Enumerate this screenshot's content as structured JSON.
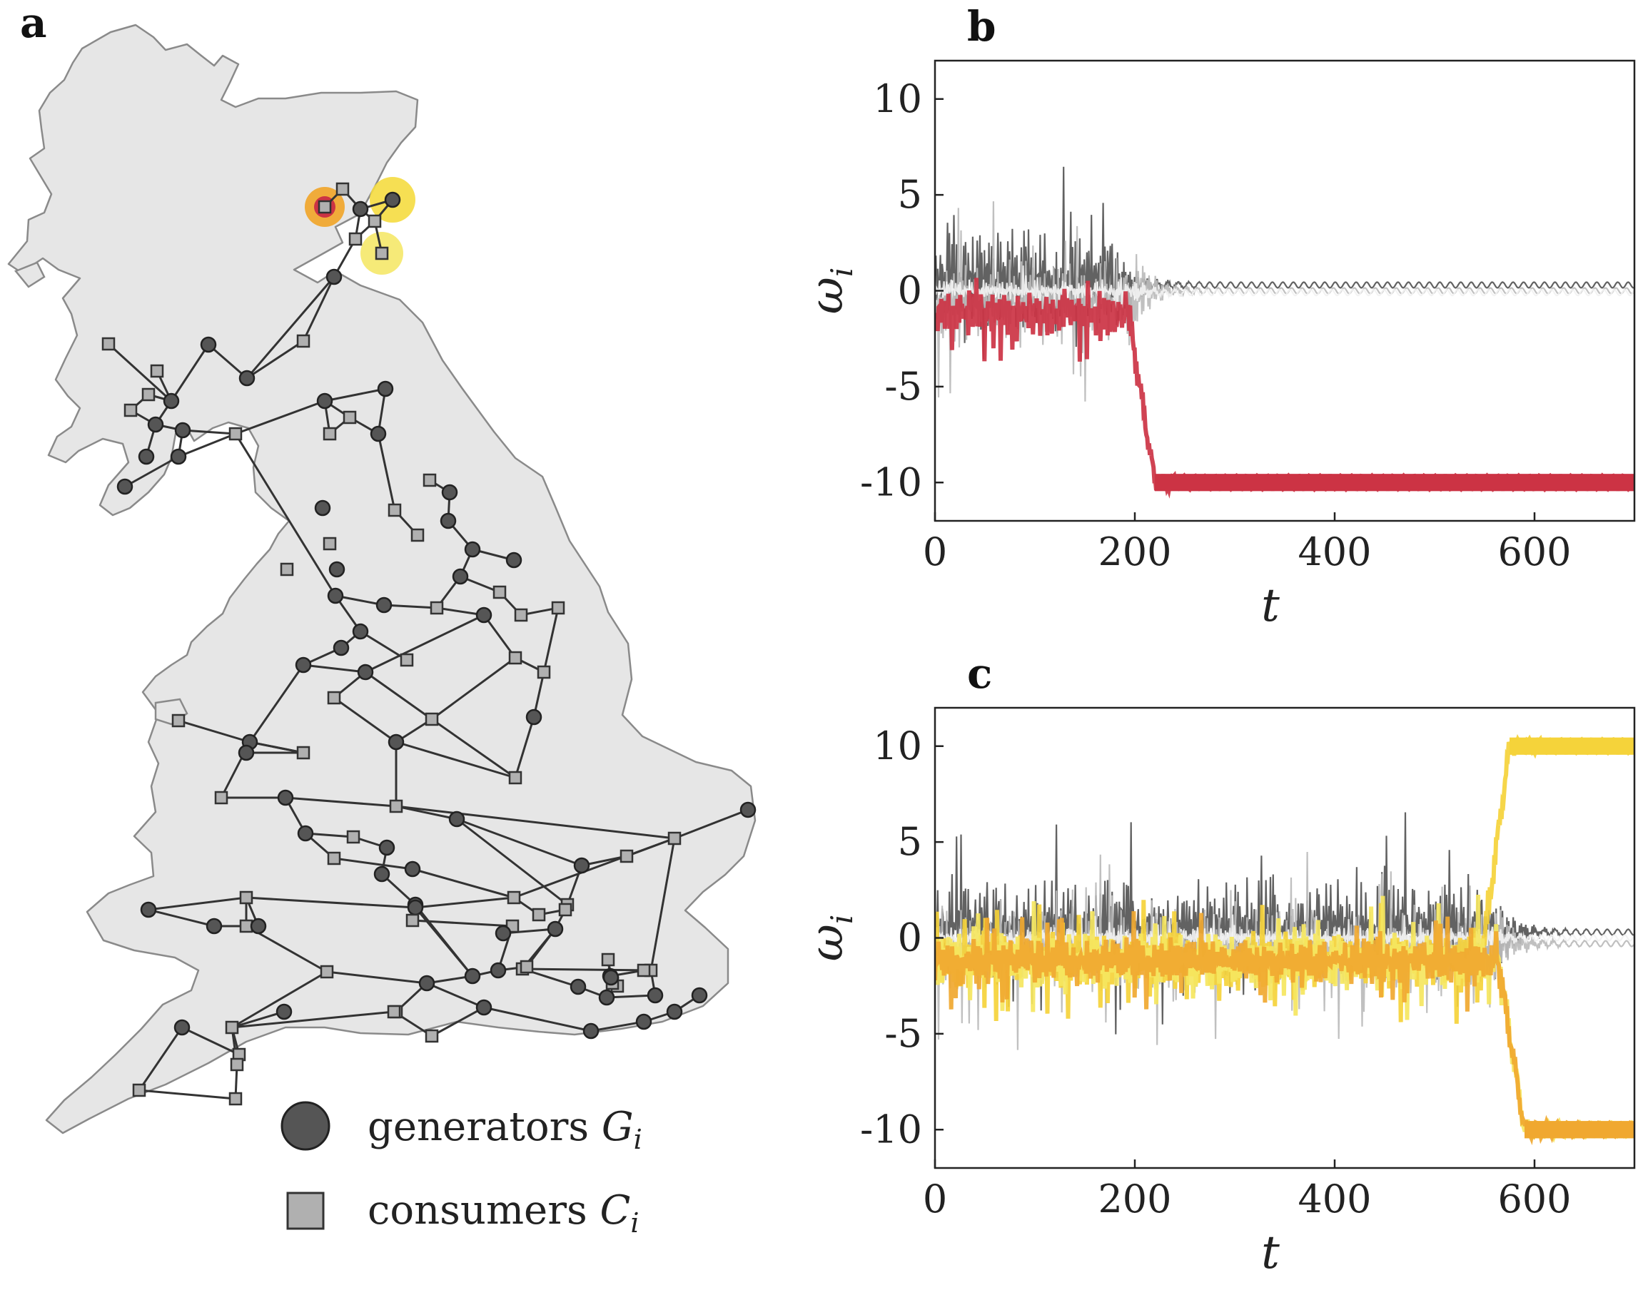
{
  "panels": {
    "a": {
      "label": "a",
      "legend": {
        "generators": {
          "text": "generators ",
          "symbol": "G",
          "sub": "i"
        },
        "consumers": {
          "text": "consumers ",
          "symbol": "C",
          "sub": "i"
        }
      }
    }
  },
  "chart_data": [
    {
      "id": "b",
      "label": "b",
      "type": "line",
      "xlabel": "t",
      "ylabel": "ω",
      "ylabel_sub": "i",
      "xlim": [
        0,
        700
      ],
      "ylim": [
        -12,
        12
      ],
      "xticks": [
        0,
        200,
        400,
        600
      ],
      "yticks": [
        10,
        5,
        0,
        -5,
        -10
      ],
      "ytick_labels": [
        "10",
        "5",
        "0",
        "-5",
        "-10"
      ],
      "series": [
        {
          "name": "dark grey oscillators",
          "color": "#555555",
          "transient_end": 180,
          "amplitude": 4.5,
          "final": 0.3
        },
        {
          "name": "light grey oscillators",
          "color": "#bbbbbb",
          "transient_end": 200,
          "amplitude": 4.0,
          "final": 0.0
        },
        {
          "name": "white oscillators",
          "color": "#f2f2f2",
          "transient_end": 200,
          "amplitude": 1.0,
          "final": -0.1
        },
        {
          "name": "desynchronised node",
          "color": "#cc3344",
          "transient_end": 190,
          "amplitude": 2.0,
          "final": -10.0
        }
      ]
    },
    {
      "id": "c",
      "label": "c",
      "type": "line",
      "xlabel": "t",
      "ylabel": "ω",
      "ylabel_sub": "i",
      "xlim": [
        0,
        700
      ],
      "ylim": [
        -12,
        12
      ],
      "xticks": [
        0,
        200,
        400,
        600
      ],
      "yticks": [
        10,
        5,
        0,
        -5,
        -10
      ],
      "ytick_labels": [
        "10",
        "5",
        "0",
        "-5",
        "-10"
      ],
      "series": [
        {
          "name": "dark grey oscillators",
          "color": "#555555",
          "transient_end": 560,
          "amplitude": 4.5,
          "final": 0.3
        },
        {
          "name": "light grey oscillators",
          "color": "#bbbbbb",
          "transient_end": 560,
          "amplitude": 4.0,
          "final": -0.3
        },
        {
          "name": "white oscillators",
          "color": "#f2f2f2",
          "transient_end": 560,
          "amplitude": 1.0,
          "final": 0.0
        },
        {
          "name": "yellow node up",
          "color": "#f5d33a",
          "transient_end": 545,
          "amplitude": 2.5,
          "final": 10.0
        },
        {
          "name": "yellow nodes down",
          "color": "#f5e660",
          "transient_end": 560,
          "amplitude": 2.5,
          "final": -10.0
        },
        {
          "name": "orange node",
          "color": "#f0a830",
          "transient_end": 560,
          "amplitude": 2.0,
          "final": -10.0
        }
      ]
    }
  ],
  "colors": {
    "land": "#e6e6e6",
    "coast": "#8a8a8a",
    "edge": "#333333",
    "generator": "#555555",
    "consumer": "#b0b0b0",
    "highlight_red": "#cc3344",
    "highlight_orange": "#f0a830",
    "highlight_yellow": "#f5dc40"
  }
}
